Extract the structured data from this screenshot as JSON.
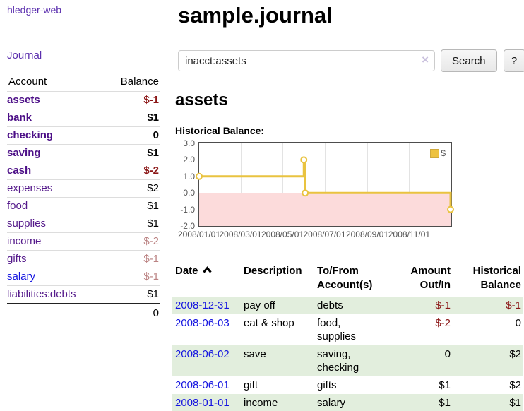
{
  "app": {
    "brand": "hledger-web",
    "nav_journal": "Journal"
  },
  "sidebar": {
    "header": {
      "account": "Account",
      "balance": "Balance"
    },
    "accounts": [
      {
        "name": "assets",
        "depth": 1,
        "bold": true,
        "balance": "$-1",
        "neg": "strong"
      },
      {
        "name": "bank",
        "depth": 2,
        "bold": true,
        "balance": "$1",
        "neg": "none"
      },
      {
        "name": "checking",
        "depth": 3,
        "bold": true,
        "balance": "0",
        "neg": "none"
      },
      {
        "name": "saving",
        "depth": 3,
        "bold": true,
        "balance": "$1",
        "neg": "none"
      },
      {
        "name": "cash",
        "depth": 2,
        "bold": true,
        "balance": "$-2",
        "neg": "strong"
      },
      {
        "name": "expenses",
        "depth": 1,
        "bold": false,
        "balance": "$2",
        "neg": "none"
      },
      {
        "name": "food",
        "depth": 2,
        "bold": false,
        "balance": "$1",
        "neg": "none"
      },
      {
        "name": "supplies",
        "depth": 2,
        "bold": false,
        "balance": "$1",
        "neg": "none"
      },
      {
        "name": "income",
        "depth": 1,
        "bold": false,
        "balance": "$-2",
        "neg": "muted"
      },
      {
        "name": "gifts",
        "depth": 2,
        "bold": false,
        "balance": "$-1",
        "neg": "muted"
      },
      {
        "name": "salary",
        "depth": 2,
        "bold": false,
        "balance": "$-1",
        "neg": "muted",
        "link": "blue"
      },
      {
        "name": "liabilities:debts",
        "depth": 1,
        "bold": false,
        "balance": "$1",
        "neg": "none"
      }
    ],
    "total": "0"
  },
  "header": {
    "title": "sample.journal"
  },
  "search": {
    "value": "inacct:assets",
    "clear_icon": "×",
    "button_label": "Search",
    "help_label": "?"
  },
  "account_page": {
    "title": "assets",
    "chart_label": "Historical Balance:"
  },
  "chart_data": {
    "type": "line",
    "title": "Historical Balance",
    "style": "steps",
    "ylim": [
      -2,
      3
    ],
    "yticks": [
      {
        "v": 3,
        "label": "3.0"
      },
      {
        "v": 2,
        "label": "2.0"
      },
      {
        "v": 1,
        "label": "1.0"
      },
      {
        "v": 0,
        "label": "0.0"
      },
      {
        "v": -1,
        "label": "-1.0"
      },
      {
        "v": -2,
        "label": "-2.0"
      }
    ],
    "xlim_days": [
      0,
      365
    ],
    "xticks": [
      {
        "day": 0,
        "label": "2008/01/01"
      },
      {
        "day": 60,
        "label": "2008/03/01"
      },
      {
        "day": 121,
        "label": "2008/05/01"
      },
      {
        "day": 182,
        "label": "2008/07/01"
      },
      {
        "day": 244,
        "label": "2008/09/01"
      },
      {
        "day": 305,
        "label": "2008/11/01"
      }
    ],
    "series": [
      {
        "name": "$",
        "color": "#e9c340",
        "points": [
          {
            "date": "2008-01-01",
            "day": 0,
            "y": 1
          },
          {
            "date": "2008-06-01",
            "day": 152,
            "y": 2
          },
          {
            "date": "2008-06-03",
            "day": 154,
            "y": 0
          },
          {
            "date": "2008-12-31",
            "day": 365,
            "y": -1
          }
        ]
      }
    ],
    "negative_region": {
      "from": 0,
      "to": -2,
      "fill": "#fcdbdb",
      "line": "#8b0000"
    },
    "legend": {
      "label": "$",
      "swatch_fill": "#edc240",
      "swatch_border": "#cfa93c",
      "position": "top-right"
    }
  },
  "register": {
    "headers": [
      {
        "lines": [
          "Date"
        ],
        "align": "left",
        "sort": "asc"
      },
      {
        "lines": [
          "Description"
        ],
        "align": "left"
      },
      {
        "lines": [
          "To/From",
          "Account(s)"
        ],
        "align": "left"
      },
      {
        "lines": [
          "Amount",
          "Out/In"
        ],
        "align": "right"
      },
      {
        "lines": [
          "Historical",
          "Balance"
        ],
        "align": "right"
      }
    ],
    "rows": [
      {
        "date": "2008-12-31",
        "description": "pay off",
        "accounts": "debts",
        "amount": "$-1",
        "amount_neg": true,
        "balance": "$-1",
        "balance_neg": true,
        "shaded": true
      },
      {
        "date": "2008-06-03",
        "description": "eat & shop",
        "accounts": "food, supplies",
        "amount": "$-2",
        "amount_neg": true,
        "balance": "0",
        "balance_neg": false,
        "shaded": false
      },
      {
        "date": "2008-06-02",
        "description": "save",
        "accounts": "saving, checking",
        "amount": "0",
        "amount_neg": false,
        "balance": "$2",
        "balance_neg": false,
        "shaded": true
      },
      {
        "date": "2008-06-01",
        "description": "gift",
        "accounts": "gifts",
        "amount": "$1",
        "amount_neg": false,
        "balance": "$2",
        "balance_neg": false,
        "shaded": false
      },
      {
        "date": "2008-01-01",
        "description": "income",
        "accounts": "salary",
        "amount": "$1",
        "amount_neg": false,
        "balance": "$1",
        "balance_neg": false,
        "shaded": true
      }
    ]
  },
  "colors": {
    "link_violet": "#5b2fae",
    "account_purple": "#551a8b",
    "link_blue": "#1414e0",
    "negative_strong": "#8b1717",
    "negative_muted": "#bb8383",
    "row_green": "#e2eedd",
    "series_gold": "#e9c340",
    "negative_zone_pink": "#fcdbdb",
    "zero_line_red": "#8b0000"
  }
}
